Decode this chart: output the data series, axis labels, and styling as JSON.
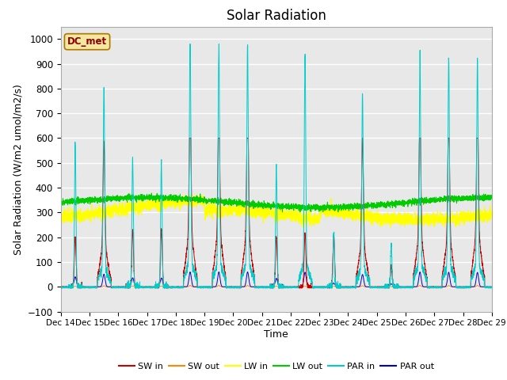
{
  "title": "Solar Radiation",
  "ylabel": "Solar Radiation (W/m2 umol/m2/s)",
  "xlabel": "Time",
  "ylim": [
    -100,
    1050
  ],
  "yticks": [
    -100,
    0,
    100,
    200,
    300,
    400,
    500,
    600,
    700,
    800,
    900,
    1000
  ],
  "x_tick_labels": [
    "Dec 14",
    "Dec 15",
    "Dec 16",
    "Dec 17",
    "Dec 18",
    "Dec 19",
    "Dec 20",
    "Dec 21",
    "Dec 22",
    "Dec 23",
    "Dec 24",
    "Dec 25",
    "Dec 26",
    "Dec 27",
    "Dec 28",
    "Dec 29"
  ],
  "station_label": "DC_met",
  "colors": {
    "SW_in": "#cc0000",
    "SW_out": "#ff8800",
    "LW_in": "#ffff00",
    "LW_out": "#00cc00",
    "PAR_in": "#00cccc",
    "PAR_out": "#0000cc"
  },
  "legend_labels": [
    "SW in",
    "SW out",
    "LW in",
    "LW out",
    "PAR in",
    "PAR out"
  ],
  "bg_color": "#e8e8e8",
  "grid_color": "#ffffff",
  "title_fontsize": 12,
  "label_fontsize": 9
}
